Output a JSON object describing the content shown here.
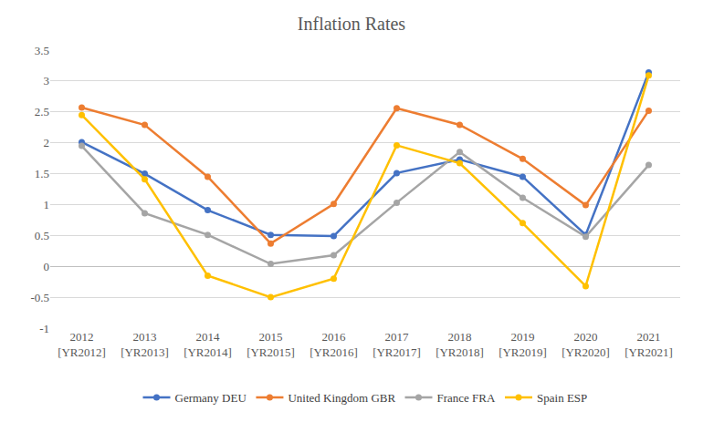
{
  "chart_data": {
    "type": "line",
    "title": "Inflation Rates",
    "categories": [
      "2012 [YR2012]",
      "2013 [YR2013]",
      "2014 [YR2014]",
      "2015 [YR2015]",
      "2016 [YR2016]",
      "2017 [YR2017]",
      "2018 [YR2018]",
      "2019 [YR2019]",
      "2020 [YR2020]",
      "2021 [YR2021]"
    ],
    "series": [
      {
        "name": "Germany DEU",
        "color": "#4472C4",
        "values": [
          2.01,
          1.5,
          0.91,
          0.51,
          0.49,
          1.51,
          1.73,
          1.45,
          0.51,
          3.14
        ]
      },
      {
        "name": "United Kingdom GBR",
        "color": "#ED7D31",
        "values": [
          2.57,
          2.29,
          1.45,
          0.37,
          1.01,
          2.56,
          2.29,
          1.74,
          0.99,
          2.52
        ]
      },
      {
        "name": "France FRA",
        "color": "#A5A5A5",
        "values": [
          1.95,
          0.86,
          0.51,
          0.04,
          0.18,
          1.03,
          1.85,
          1.11,
          0.48,
          1.64
        ]
      },
      {
        "name": "Spain ESP",
        "color": "#FFC000",
        "values": [
          2.45,
          1.41,
          -0.15,
          -0.5,
          -0.2,
          1.96,
          1.67,
          0.7,
          -0.32,
          3.09
        ]
      }
    ],
    "ylim": [
      -1,
      3.5
    ],
    "yticks": [
      -1,
      -0.5,
      0,
      0.5,
      1,
      1.5,
      2,
      2.5,
      3,
      3.5
    ],
    "grid": true,
    "legend": "bottom",
    "marker": "circle",
    "line_style": "solid"
  }
}
